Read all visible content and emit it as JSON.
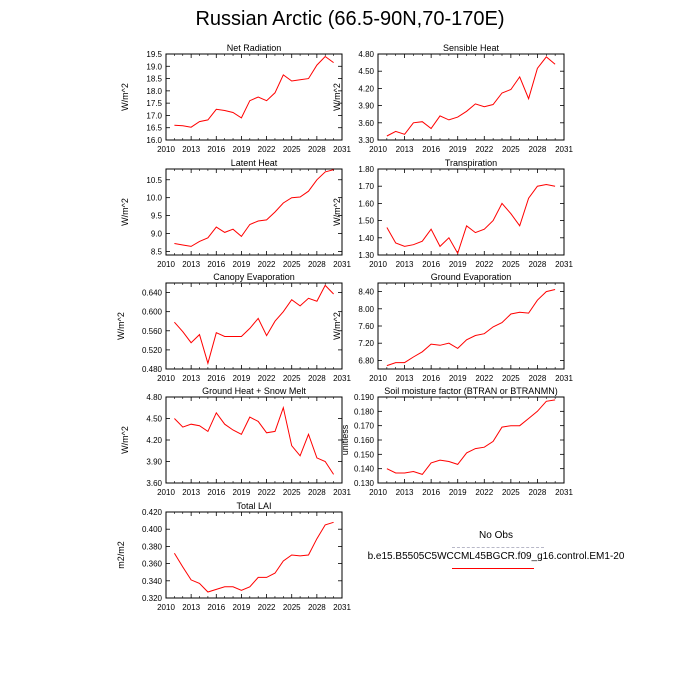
{
  "figure": {
    "title": "Russian Arctic (66.5-90N,70-170E)"
  },
  "legend": {
    "obs_label": "No Obs",
    "model_label": "b.e15.B5505C5WCCML45BGCR.f09_g16.control.EM1-20",
    "obs_color": "#b8b8c8",
    "model_color": "#ff0000"
  },
  "chart_data": [
    {
      "type": "line",
      "title": "Net Radiation",
      "ylabel": "W/m^2",
      "xlim": [
        2010,
        2031
      ],
      "ylim": [
        16.0,
        19.5
      ],
      "xticks": [
        2010,
        2013,
        2016,
        2019,
        2022,
        2025,
        2028,
        2031
      ],
      "xtick_labels": [
        "2010",
        "2013",
        "2016",
        "2019",
        "2022",
        "2025",
        "2028",
        "2031"
      ],
      "yticks": [
        16.0,
        16.5,
        17.0,
        17.5,
        18.0,
        18.5,
        19.0,
        19.5
      ],
      "ytick_labels": [
        "16.0",
        "16.5",
        "17.0",
        "17.5",
        "18.0",
        "18.5",
        "19.0",
        "19.5"
      ],
      "series": [
        {
          "name": "b.e15.B5505C5WCCML45BGCR.f09_g16.control.EM1-20",
          "color": "#ff0000",
          "x": [
            2011,
            2012,
            2013,
            2014,
            2015,
            2016,
            2017,
            2018,
            2019,
            2020,
            2021,
            2022,
            2023,
            2024,
            2025,
            2026,
            2027,
            2028,
            2029,
            2030
          ],
          "y": [
            16.6,
            16.58,
            16.52,
            16.75,
            16.82,
            17.25,
            17.2,
            17.12,
            16.9,
            17.6,
            17.75,
            17.6,
            17.92,
            18.65,
            18.4,
            18.45,
            18.5,
            19.05,
            19.4,
            19.15
          ]
        }
      ]
    },
    {
      "type": "line",
      "title": "Sensible Heat",
      "ylabel": "W/m^2",
      "xlim": [
        2010,
        2031
      ],
      "ylim": [
        3.3,
        4.8
      ],
      "xticks": [
        2010,
        2013,
        2016,
        2019,
        2022,
        2025,
        2028,
        2031
      ],
      "xtick_labels": [
        "2010",
        "2013",
        "2016",
        "2019",
        "2022",
        "2025",
        "2028",
        "2031"
      ],
      "yticks": [
        3.3,
        3.6,
        3.9,
        4.2,
        4.5,
        4.8
      ],
      "ytick_labels": [
        "3.30",
        "3.60",
        "3.90",
        "4.20",
        "4.50",
        "4.80"
      ],
      "series": [
        {
          "name": "b.e15.B5505C5WCCML45BGCR.f09_g16.control.EM1-20",
          "color": "#ff0000",
          "x": [
            2011,
            2012,
            2013,
            2014,
            2015,
            2016,
            2017,
            2018,
            2019,
            2020,
            2021,
            2022,
            2023,
            2024,
            2025,
            2026,
            2027,
            2028,
            2029,
            2030
          ],
          "y": [
            3.37,
            3.45,
            3.4,
            3.6,
            3.62,
            3.5,
            3.72,
            3.65,
            3.7,
            3.8,
            3.93,
            3.88,
            3.92,
            4.12,
            4.18,
            4.4,
            4.02,
            4.55,
            4.75,
            4.62
          ]
        }
      ]
    },
    {
      "type": "line",
      "title": "Latent Heat",
      "ylabel": "W/m^2",
      "xlim": [
        2010,
        2031
      ],
      "ylim": [
        8.4,
        10.8
      ],
      "xticks": [
        2010,
        2013,
        2016,
        2019,
        2022,
        2025,
        2028,
        2031
      ],
      "xtick_labels": [
        "2010",
        "2013",
        "2016",
        "2019",
        "2022",
        "2025",
        "2028",
        "2031"
      ],
      "yticks": [
        8.5,
        9.0,
        9.5,
        10.0,
        10.5
      ],
      "ytick_labels": [
        "8.5",
        "9.0",
        "9.5",
        "10.0",
        "10.5"
      ],
      "series": [
        {
          "name": "b.e15.B5505C5WCCML45BGCR.f09_g16.control.EM1-20",
          "color": "#ff0000",
          "x": [
            2011,
            2012,
            2013,
            2014,
            2015,
            2016,
            2017,
            2018,
            2019,
            2020,
            2021,
            2022,
            2023,
            2024,
            2025,
            2026,
            2027,
            2028,
            2029,
            2030
          ],
          "y": [
            8.72,
            8.68,
            8.64,
            8.78,
            8.88,
            9.18,
            9.03,
            9.12,
            8.92,
            9.25,
            9.35,
            9.38,
            9.6,
            9.85,
            10.0,
            10.02,
            10.18,
            10.5,
            10.72,
            10.78
          ]
        }
      ]
    },
    {
      "type": "line",
      "title": "Transpiration",
      "ylabel": "W/m^2",
      "xlim": [
        2010,
        2031
      ],
      "ylim": [
        1.3,
        1.8
      ],
      "xticks": [
        2010,
        2013,
        2016,
        2019,
        2022,
        2025,
        2028,
        2031
      ],
      "xtick_labels": [
        "2010",
        "2013",
        "2016",
        "2019",
        "2022",
        "2025",
        "2028",
        "2031"
      ],
      "yticks": [
        1.3,
        1.4,
        1.5,
        1.6,
        1.7,
        1.8
      ],
      "ytick_labels": [
        "1.30",
        "1.40",
        "1.50",
        "1.60",
        "1.70",
        "1.80"
      ],
      "series": [
        {
          "name": "b.e15.B5505C5WCCML45BGCR.f09_g16.control.EM1-20",
          "color": "#ff0000",
          "x": [
            2011,
            2012,
            2013,
            2014,
            2015,
            2016,
            2017,
            2018,
            2019,
            2020,
            2021,
            2022,
            2023,
            2024,
            2025,
            2026,
            2027,
            2028,
            2029,
            2030
          ],
          "y": [
            1.46,
            1.37,
            1.35,
            1.36,
            1.38,
            1.45,
            1.35,
            1.4,
            1.31,
            1.47,
            1.43,
            1.45,
            1.5,
            1.6,
            1.54,
            1.47,
            1.63,
            1.7,
            1.71,
            1.7
          ]
        }
      ]
    },
    {
      "type": "line",
      "title": "Canopy Evaporation",
      "ylabel": "W/m^2",
      "xlim": [
        2010,
        2031
      ],
      "ylim": [
        0.48,
        0.66
      ],
      "xticks": [
        2010,
        2013,
        2016,
        2019,
        2022,
        2025,
        2028,
        2031
      ],
      "xtick_labels": [
        "2010",
        "2013",
        "2016",
        "2019",
        "2022",
        "2025",
        "2028",
        "2031"
      ],
      "yticks": [
        0.48,
        0.52,
        0.56,
        0.6,
        0.64
      ],
      "ytick_labels": [
        "0.480",
        "0.520",
        "0.560",
        "0.600",
        "0.640"
      ],
      "series": [
        {
          "name": "b.e15.B5505C5WCCML45BGCR.f09_g16.control.EM1-20",
          "color": "#ff0000",
          "x": [
            2011,
            2012,
            2013,
            2014,
            2015,
            2016,
            2017,
            2018,
            2019,
            2020,
            2021,
            2022,
            2023,
            2024,
            2025,
            2026,
            2027,
            2028,
            2029,
            2030
          ],
          "y": [
            0.578,
            0.558,
            0.535,
            0.552,
            0.492,
            0.556,
            0.548,
            0.548,
            0.548,
            0.565,
            0.586,
            0.55,
            0.58,
            0.6,
            0.625,
            0.612,
            0.628,
            0.622,
            0.655,
            0.637
          ]
        }
      ]
    },
    {
      "type": "line",
      "title": "Ground Evaporation",
      "ylabel": "W/m^2",
      "xlim": [
        2010,
        2031
      ],
      "ylim": [
        6.6,
        8.6
      ],
      "xticks": [
        2010,
        2013,
        2016,
        2019,
        2022,
        2025,
        2028,
        2031
      ],
      "xtick_labels": [
        "2010",
        "2013",
        "2016",
        "2019",
        "2022",
        "2025",
        "2028",
        "2031"
      ],
      "yticks": [
        6.8,
        7.2,
        7.6,
        8.0,
        8.4
      ],
      "ytick_labels": [
        "6.80",
        "7.20",
        "7.60",
        "8.00",
        "8.40"
      ],
      "series": [
        {
          "name": "b.e15.B5505C5WCCML45BGCR.f09_g16.control.EM1-20",
          "color": "#ff0000",
          "x": [
            2011,
            2012,
            2013,
            2014,
            2015,
            2016,
            2017,
            2018,
            2019,
            2020,
            2021,
            2022,
            2023,
            2024,
            2025,
            2026,
            2027,
            2028,
            2029,
            2030
          ],
          "y": [
            6.68,
            6.75,
            6.75,
            6.88,
            7.0,
            7.18,
            7.15,
            7.2,
            7.08,
            7.28,
            7.38,
            7.42,
            7.58,
            7.68,
            7.88,
            7.92,
            7.9,
            8.2,
            8.4,
            8.45
          ]
        }
      ]
    },
    {
      "type": "line",
      "title": "Ground Heat + Snow Melt",
      "ylabel": "W/m^2",
      "xlim": [
        2010,
        2031
      ],
      "ylim": [
        3.6,
        4.8
      ],
      "xticks": [
        2010,
        2013,
        2016,
        2019,
        2022,
        2025,
        2028,
        2031
      ],
      "xtick_labels": [
        "2010",
        "2013",
        "2016",
        "2019",
        "2022",
        "2025",
        "2028",
        "2031"
      ],
      "yticks": [
        3.6,
        3.9,
        4.2,
        4.5,
        4.8
      ],
      "ytick_labels": [
        "3.60",
        "3.90",
        "4.20",
        "4.50",
        "4.80"
      ],
      "series": [
        {
          "name": "b.e15.B5505C5WCCML45BGCR.f09_g16.control.EM1-20",
          "color": "#ff0000",
          "x": [
            2011,
            2012,
            2013,
            2014,
            2015,
            2016,
            2017,
            2018,
            2019,
            2020,
            2021,
            2022,
            2023,
            2024,
            2025,
            2026,
            2027,
            2028,
            2029,
            2030
          ],
          "y": [
            4.5,
            4.38,
            4.42,
            4.4,
            4.32,
            4.58,
            4.42,
            4.34,
            4.28,
            4.52,
            4.46,
            4.3,
            4.32,
            4.65,
            4.12,
            3.98,
            4.28,
            3.95,
            3.9,
            3.72
          ]
        }
      ]
    },
    {
      "type": "line",
      "title": "Soil moisture factor (BTRAN or BTRANMN)",
      "ylabel": "unitless",
      "xlim": [
        2010,
        2031
      ],
      "ylim": [
        0.13,
        0.19
      ],
      "xticks": [
        2010,
        2013,
        2016,
        2019,
        2022,
        2025,
        2028,
        2031
      ],
      "xtick_labels": [
        "2010",
        "2013",
        "2016",
        "2019",
        "2022",
        "2025",
        "2028",
        "2031"
      ],
      "yticks": [
        0.13,
        0.14,
        0.15,
        0.16,
        0.17,
        0.18,
        0.19
      ],
      "ytick_labels": [
        "0.130",
        "0.140",
        "0.150",
        "0.160",
        "0.170",
        "0.180",
        "0.190"
      ],
      "series": [
        {
          "name": "b.e15.B5505C5WCCML45BGCR.f09_g16.control.EM1-20",
          "color": "#ff0000",
          "x": [
            2011,
            2012,
            2013,
            2014,
            2015,
            2016,
            2017,
            2018,
            2019,
            2020,
            2021,
            2022,
            2023,
            2024,
            2025,
            2026,
            2027,
            2028,
            2029,
            2030
          ],
          "y": [
            0.14,
            0.137,
            0.137,
            0.138,
            0.136,
            0.144,
            0.146,
            0.145,
            0.143,
            0.151,
            0.154,
            0.155,
            0.159,
            0.169,
            0.17,
            0.17,
            0.175,
            0.18,
            0.187,
            0.188
          ]
        }
      ]
    },
    {
      "type": "line",
      "title": "Total LAI",
      "ylabel": "m2/m2",
      "xlim": [
        2010,
        2031
      ],
      "ylim": [
        0.32,
        0.42
      ],
      "xticks": [
        2010,
        2013,
        2016,
        2019,
        2022,
        2025,
        2028,
        2031
      ],
      "xtick_labels": [
        "2010",
        "2013",
        "2016",
        "2019",
        "2022",
        "2025",
        "2028",
        "2031"
      ],
      "yticks": [
        0.32,
        0.34,
        0.36,
        0.38,
        0.4,
        0.42
      ],
      "ytick_labels": [
        "0.320",
        "0.340",
        "0.360",
        "0.380",
        "0.400",
        "0.420"
      ],
      "series": [
        {
          "name": "b.e15.B5505C5WCCML45BGCR.f09_g16.control.EM1-20",
          "color": "#ff0000",
          "x": [
            2011,
            2012,
            2013,
            2014,
            2015,
            2016,
            2017,
            2018,
            2019,
            2020,
            2021,
            2022,
            2023,
            2024,
            2025,
            2026,
            2027,
            2028,
            2029,
            2030
          ],
          "y": [
            0.372,
            0.356,
            0.341,
            0.337,
            0.327,
            0.33,
            0.333,
            0.333,
            0.329,
            0.333,
            0.344,
            0.344,
            0.349,
            0.363,
            0.37,
            0.369,
            0.37,
            0.389,
            0.405,
            0.408
          ]
        }
      ]
    }
  ]
}
